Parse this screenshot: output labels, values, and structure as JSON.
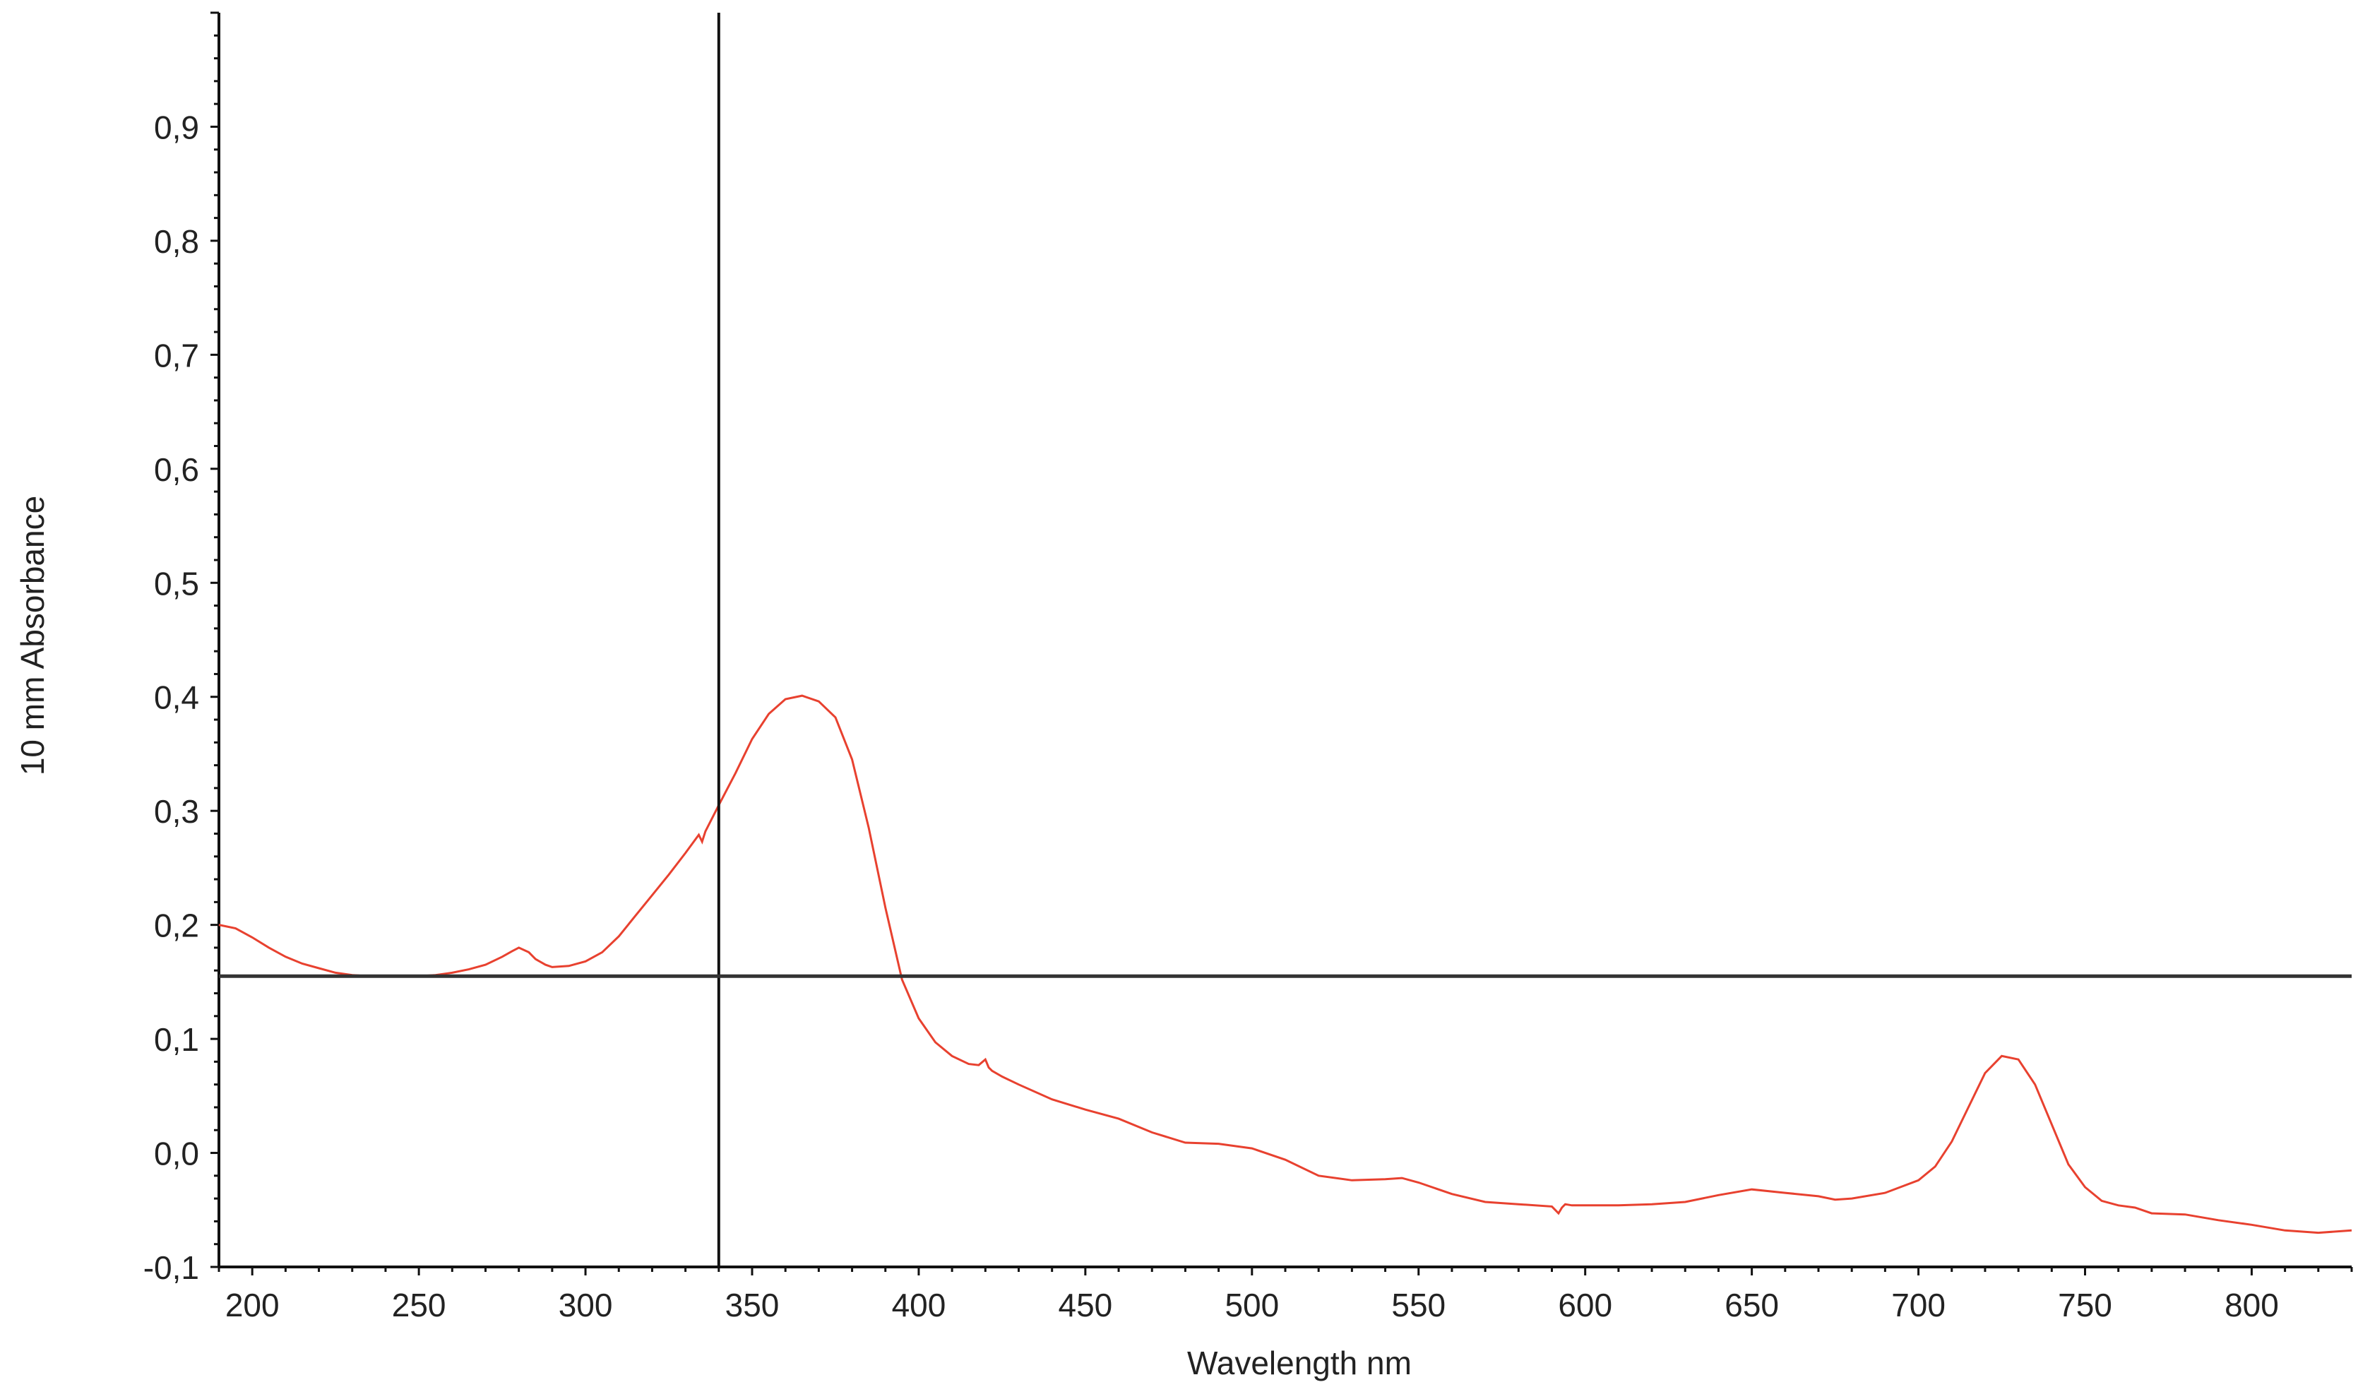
{
  "chart_data": {
    "type": "line",
    "title": "",
    "xlabel": "Wavelength nm",
    "ylabel": "10 mm Absorbance",
    "xlim": [
      190,
      830
    ],
    "ylim": [
      -0.1,
      1.0
    ],
    "x_ticks": [
      200,
      250,
      300,
      350,
      400,
      450,
      500,
      550,
      600,
      650,
      700,
      750,
      800
    ],
    "x_tick_labels": [
      "200",
      "250",
      "300",
      "350",
      "400",
      "450",
      "500",
      "550",
      "600",
      "650",
      "700",
      "750",
      "800"
    ],
    "y_ticks": [
      -0.1,
      0.0,
      0.1,
      0.2,
      0.3,
      0.4,
      0.5,
      0.6,
      0.7,
      0.8,
      0.9
    ],
    "y_tick_labels": [
      "-0,1",
      "0,0",
      "0,1",
      "0,2",
      "0,3",
      "0,4",
      "0,5",
      "0,6",
      "0,7",
      "0,8",
      "0,9"
    ],
    "grid": false,
    "legend": "none",
    "cursor": {
      "x": 340,
      "y": 0.155
    },
    "series": [
      {
        "color": "#e8412f",
        "x": [
          190,
          195,
          200,
          205,
          210,
          215,
          220,
          225,
          230,
          235,
          240,
          245,
          250,
          255,
          260,
          265,
          270,
          275,
          278,
          280,
          283,
          285,
          288,
          290,
          295,
          300,
          305,
          310,
          315,
          320,
          325,
          330,
          333,
          334,
          335,
          336,
          340,
          345,
          350,
          355,
          360,
          365,
          370,
          375,
          380,
          385,
          390,
          395,
          400,
          405,
          410,
          415,
          418,
          420,
          421,
          422,
          425,
          430,
          440,
          450,
          460,
          470,
          480,
          490,
          500,
          510,
          520,
          530,
          540,
          545,
          550,
          560,
          570,
          580,
          590,
          592,
          593,
          594,
          596,
          600,
          610,
          620,
          630,
          640,
          650,
          660,
          670,
          675,
          680,
          690,
          700,
          705,
          710,
          715,
          720,
          725,
          730,
          735,
          740,
          745,
          750,
          755,
          760,
          765,
          770,
          780,
          790,
          800,
          810,
          820,
          830
        ],
        "y": [
          0.2,
          0.197,
          0.189,
          0.18,
          0.172,
          0.166,
          0.162,
          0.158,
          0.156,
          0.155,
          0.155,
          0.155,
          0.155,
          0.156,
          0.158,
          0.161,
          0.165,
          0.172,
          0.177,
          0.18,
          0.176,
          0.17,
          0.165,
          0.163,
          0.164,
          0.168,
          0.176,
          0.19,
          0.208,
          0.226,
          0.244,
          0.263,
          0.275,
          0.279,
          0.273,
          0.282,
          0.305,
          0.333,
          0.363,
          0.385,
          0.398,
          0.401,
          0.396,
          0.382,
          0.345,
          0.285,
          0.215,
          0.152,
          0.118,
          0.097,
          0.085,
          0.078,
          0.077,
          0.082,
          0.075,
          0.072,
          0.067,
          0.06,
          0.047,
          0.038,
          0.03,
          0.018,
          0.009,
          0.008,
          0.004,
          -0.006,
          -0.02,
          -0.024,
          -0.023,
          -0.022,
          -0.026,
          -0.036,
          -0.043,
          -0.045,
          -0.047,
          -0.053,
          -0.048,
          -0.045,
          -0.046,
          -0.046,
          -0.046,
          -0.045,
          -0.043,
          -0.037,
          -0.032,
          -0.035,
          -0.038,
          -0.041,
          -0.04,
          -0.035,
          -0.024,
          -0.012,
          0.01,
          0.04,
          0.07,
          0.085,
          0.082,
          0.06,
          0.025,
          -0.01,
          -0.03,
          -0.042,
          -0.046,
          -0.048,
          -0.053,
          -0.054,
          -0.059,
          -0.063,
          -0.068,
          -0.07,
          -0.068
        ]
      }
    ]
  }
}
